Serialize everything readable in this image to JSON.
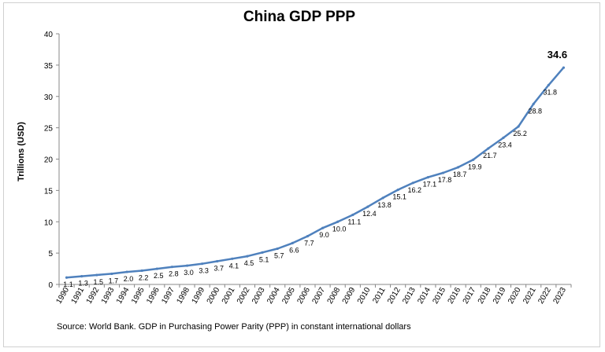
{
  "chart_data": {
    "type": "line",
    "title": "China GDP PPP",
    "ylabel": "Trillions (USD)",
    "xlabel": "",
    "ylim": [
      0,
      40
    ],
    "yticks": [
      "0",
      "5",
      "10",
      "15",
      "20",
      "25",
      "30",
      "35",
      "40"
    ],
    "grid": false,
    "legend": "none",
    "line_color": "#4F81BD",
    "x": [
      "1990",
      "1991",
      "1992",
      "1993",
      "1994",
      "1995",
      "1996",
      "1997",
      "1998",
      "1999",
      "2000",
      "2001",
      "2002",
      "2003",
      "2004",
      "2005",
      "2006",
      "2007",
      "2008",
      "2009",
      "2010",
      "2011",
      "2012",
      "2013",
      "2014",
      "2015",
      "2016",
      "2017",
      "2018",
      "2019",
      "2020",
      "2021",
      "2022",
      "2023"
    ],
    "values": [
      1.1,
      1.3,
      1.5,
      1.7,
      2.0,
      2.2,
      2.5,
      2.8,
      3.0,
      3.3,
      3.7,
      4.1,
      4.5,
      5.1,
      5.7,
      6.6,
      7.7,
      9.0,
      10.0,
      11.1,
      12.4,
      13.8,
      15.1,
      16.2,
      17.1,
      17.8,
      18.7,
      19.9,
      21.7,
      23.4,
      25.2,
      28.8,
      31.8,
      34.6
    ],
    "data_labels": [
      "1.1",
      "1.3",
      "1.5",
      "1.7",
      "2.0",
      "2.2",
      "2.5",
      "2.8",
      "3.0",
      "3.3",
      "3.7",
      "4.1",
      "4.5",
      "5.1",
      "5.7",
      "6.6",
      "7.7",
      "9.0",
      "10.0",
      "11.1",
      "12.4",
      "13.8",
      "15.1",
      "16.2",
      "17.1",
      "17.8",
      "18.7",
      "19.9",
      "21.7",
      "23.4",
      "25.2",
      "28.8",
      "31.8",
      "34.6"
    ]
  },
  "source": "Source: World Bank. GDP in Purchasing Power Parity (PPP) in constant international dollars"
}
